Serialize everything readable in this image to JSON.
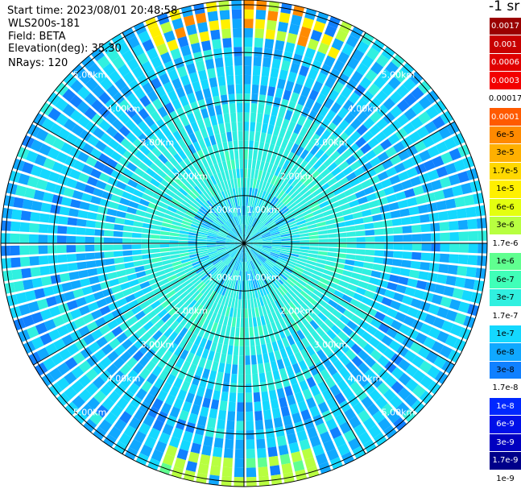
{
  "info": {
    "start_time": "Start time: 2023/08/01 20:48:58",
    "instrument": "WLS200s-181",
    "field": "Field: BETA",
    "elevation": "Elevation(deg): 35.30",
    "nrays": "NRays: 120"
  },
  "colorbar": {
    "units": "-1 sr",
    "entries": [
      {
        "label": "0.0017",
        "color": "#9a0000",
        "text_color": "#ffffff"
      },
      {
        "label": "0.001",
        "color": "#c80000",
        "text_color": "#ffffff"
      },
      {
        "label": "0.0006",
        "color": "#e00000",
        "text_color": "#ffffff"
      },
      {
        "label": "0.0003",
        "color": "#f30000",
        "text_color": "#ffffff"
      },
      {
        "label": "0.00017",
        "color": "#ffffff",
        "text_color": "#000000"
      },
      {
        "label": "0.0001",
        "color": "#ff5a00",
        "text_color": "#ffffff"
      },
      {
        "label": "6e-5",
        "color": "#ff8a00",
        "text_color": "#000000"
      },
      {
        "label": "3e-5",
        "color": "#ffb000",
        "text_color": "#000000"
      },
      {
        "label": "1.7e-5",
        "color": "#ffd800",
        "text_color": "#000000"
      },
      {
        "label": "1e-5",
        "color": "#fff000",
        "text_color": "#000000"
      },
      {
        "label": "6e-6",
        "color": "#e4ff10",
        "text_color": "#000000"
      },
      {
        "label": "3e-6",
        "color": "#b8ff40",
        "text_color": "#000000"
      },
      {
        "label": "1.7e-6",
        "color": "#ffffff",
        "text_color": "#000000"
      },
      {
        "label": "1e-6",
        "color": "#60ff90",
        "text_color": "#000000"
      },
      {
        "label": "6e-7",
        "color": "#40ffb8",
        "text_color": "#000000"
      },
      {
        "label": "3e-7",
        "color": "#30f0e0",
        "text_color": "#000000"
      },
      {
        "label": "1.7e-7",
        "color": "#ffffff",
        "text_color": "#000000"
      },
      {
        "label": "1e-7",
        "color": "#14d8ff",
        "text_color": "#000000"
      },
      {
        "label": "6e-8",
        "color": "#10a8ff",
        "text_color": "#000000"
      },
      {
        "label": "3e-8",
        "color": "#1080ff",
        "text_color": "#000000"
      },
      {
        "label": "1.7e-8",
        "color": "#ffffff",
        "text_color": "#000000"
      },
      {
        "label": "1e-8",
        "color": "#0028ff",
        "text_color": "#ffffff"
      },
      {
        "label": "6e-9",
        "color": "#0010e8",
        "text_color": "#ffffff"
      },
      {
        "label": "3e-9",
        "color": "#0000c0",
        "text_color": "#ffffff"
      },
      {
        "label": "1.7e-9",
        "color": "#00008a",
        "text_color": "#ffffff"
      },
      {
        "label": "1e-9",
        "color": "#ffffff",
        "text_color": "#000000"
      }
    ]
  },
  "chart_data": {
    "type": "heatmap",
    "projection": "polar-ppi",
    "range_rings": [
      {
        "range_km": 1,
        "label": "1.00km"
      },
      {
        "range_km": 2,
        "label": "2.00km"
      },
      {
        "range_km": 3,
        "label": "3.00km"
      },
      {
        "range_km": 4,
        "label": "4.00km"
      },
      {
        "range_km": 5,
        "label": "5.00km"
      }
    ],
    "max_range_km": 5.1,
    "azimuth_spokes_deg": [
      0,
      30,
      60,
      90,
      120,
      150,
      180,
      210,
      240,
      270,
      300,
      330
    ],
    "n_rays": 120,
    "range_gates": 26,
    "field": "BETA",
    "approximate_levels": {
      "near_center": "1e-6 to 3e-7",
      "mid_range": "3e-7",
      "far_range": "1e-7 to 3e-8",
      "north_edge_patch": "1e-5 to 1e-4",
      "south_edge_patch": "1e-6 to 3e-6"
    }
  }
}
